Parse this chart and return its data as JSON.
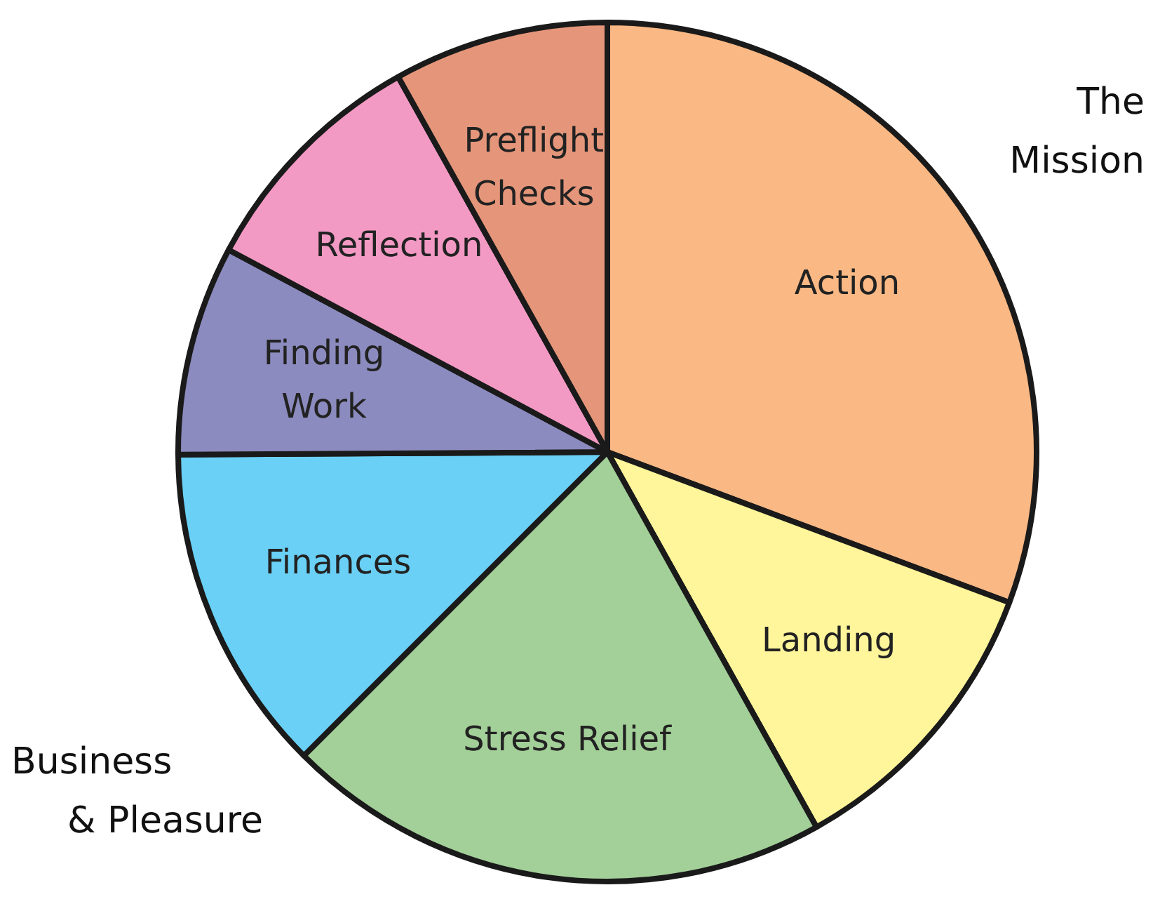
{
  "chart_data": {
    "type": "pie",
    "categories": [
      "Action",
      "Landing",
      "Stress Relief",
      "Finances",
      "Finding Work",
      "Reflection",
      "Preflight Checks"
    ],
    "values": [
      30.7,
      11.2,
      20.6,
      12.4,
      7.9,
      9.1,
      8.1
    ],
    "colors": [
      "#f9b884",
      "#fff59a",
      "#a3cf98",
      "#6ad0f5",
      "#8b8bbf",
      "#f39ac4",
      "#e5967a"
    ],
    "annotations": [
      "The Mission",
      "Business & Pleasure"
    ],
    "legend": false
  }
}
